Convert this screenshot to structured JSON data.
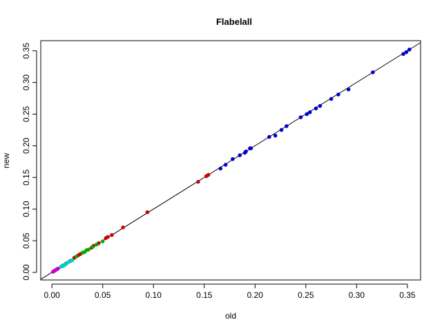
{
  "chart_data": {
    "type": "scatter",
    "title": "Flabelall",
    "xlabel": "old",
    "ylabel": "new",
    "xlim": [
      -0.011,
      0.363
    ],
    "ylim": [
      -0.012,
      0.366
    ],
    "xticks": [
      "0.00",
      "0.05",
      "0.10",
      "0.15",
      "0.20",
      "0.25",
      "0.30",
      "0.35"
    ],
    "yticks": [
      "0.00",
      "0.05",
      "0.10",
      "0.15",
      "0.20",
      "0.25",
      "0.30",
      "0.35"
    ],
    "reference_line": "y = x",
    "grid": false,
    "legend": "none",
    "series": [
      {
        "color": "#0000cc",
        "points": [
          [
            0.166,
            0.164
          ],
          [
            0.171,
            0.17
          ],
          [
            0.178,
            0.179
          ],
          [
            0.185,
            0.185
          ],
          [
            0.19,
            0.189
          ],
          [
            0.191,
            0.191
          ],
          [
            0.195,
            0.196
          ],
          [
            0.196,
            0.196
          ],
          [
            0.214,
            0.214
          ],
          [
            0.22,
            0.216
          ],
          [
            0.226,
            0.225
          ],
          [
            0.231,
            0.231
          ],
          [
            0.245,
            0.245
          ],
          [
            0.251,
            0.25
          ],
          [
            0.254,
            0.253
          ],
          [
            0.26,
            0.259
          ],
          [
            0.264,
            0.263
          ],
          [
            0.275,
            0.274
          ],
          [
            0.282,
            0.281
          ],
          [
            0.292,
            0.289
          ],
          [
            0.316,
            0.316
          ],
          [
            0.346,
            0.345
          ],
          [
            0.349,
            0.348
          ],
          [
            0.352,
            0.352
          ]
        ]
      },
      {
        "color": "#cc0000",
        "points": [
          [
            0.144,
            0.143
          ],
          [
            0.152,
            0.152
          ],
          [
            0.154,
            0.154
          ],
          [
            0.094,
            0.095
          ],
          [
            0.07,
            0.071
          ],
          [
            0.059,
            0.059
          ],
          [
            0.055,
            0.056
          ],
          [
            0.053,
            0.054
          ],
          [
            0.046,
            0.046
          ],
          [
            0.041,
            0.042
          ],
          [
            0.039,
            0.039
          ],
          [
            0.028,
            0.029
          ],
          [
            0.026,
            0.027
          ],
          [
            0.022,
            0.023
          ],
          [
            0.018,
            0.018
          ],
          [
            0.014,
            0.014
          ]
        ]
      },
      {
        "color": "#00aa00",
        "points": [
          [
            0.05,
            0.049
          ],
          [
            0.044,
            0.044
          ],
          [
            0.04,
            0.04
          ],
          [
            0.036,
            0.036
          ],
          [
            0.034,
            0.035
          ],
          [
            0.032,
            0.032
          ],
          [
            0.03,
            0.031
          ],
          [
            0.024,
            0.025
          ],
          [
            0.011,
            0.011
          ],
          [
            0.01,
            0.01
          ]
        ]
      },
      {
        "color": "#00cccc",
        "points": [
          [
            0.02,
            0.019
          ],
          [
            0.017,
            0.017
          ],
          [
            0.015,
            0.015
          ],
          [
            0.013,
            0.012
          ],
          [
            0.011,
            0.01
          ],
          [
            0.009,
            0.009
          ]
        ]
      },
      {
        "color": "#cc00cc",
        "points": [
          [
            0.006,
            0.006
          ],
          [
            0.005,
            0.005
          ],
          [
            0.004,
            0.004
          ],
          [
            0.003,
            0.003
          ],
          [
            0.002,
            0.002
          ],
          [
            0.001,
            0.001
          ]
        ]
      }
    ]
  }
}
